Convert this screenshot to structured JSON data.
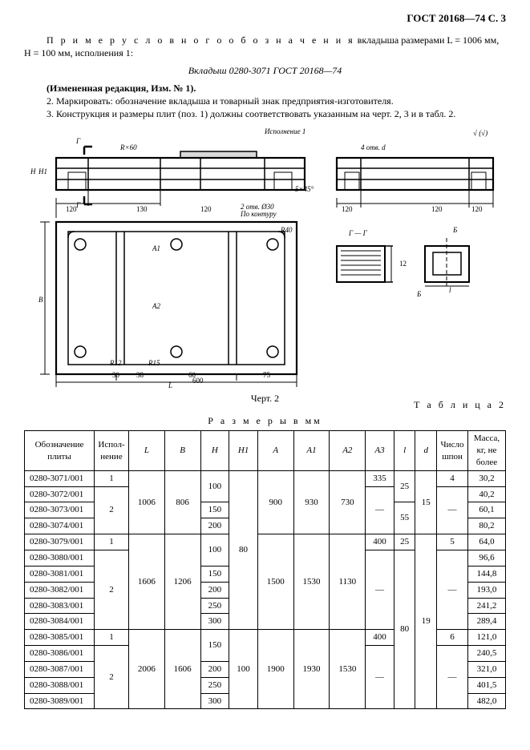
{
  "header": "ГОСТ 20168—74 С. 3",
  "intro": {
    "line1_prefix": "П р и м е р   у с л о в н о г о   о б о з н а ч е н и я",
    "line1_rest": " вкладыша размерами L = 1006 мм, H = 100 мм, исполнения 1:",
    "designation": "Вкладыш 0280-3071 ГОСТ 20168—74",
    "amend": "(Измененная редакция, Изм. № 1).",
    "n2": "2.  Маркировать: обозначение вкладыша и товарный знак предприятия-изготовителя.",
    "n3": "3.  Конструкция и размеры плит (поз. 1) должны соответствовать указанным на черт. 2, 3 и в табл. 2."
  },
  "fig": {
    "caption": "Черт. 2",
    "labels": {
      "isp": "Исполнение 1",
      "vvb": "√ (√)",
      "gg": "Г — Г",
      "g": "Г",
      "gt": "Г",
      "b": "Б",
      "bt": "Б",
      "4d": "4 отв. d",
      "l": "L",
      "h": "H",
      "h1": "H1",
      "b_dim": "B",
      "l1": "l",
      "a": "A",
      "a1": "A1",
      "a2": "A2",
      "a3": "A3",
      "rx": "R×60",
      "r40": "R40",
      "r12": "R12",
      "r15": "R15",
      "d30": "2 отв. Ø30",
      "pok": "По контуру",
      "s": "5×45°",
      "d130": "130",
      "d120_1": "120",
      "d120_2": "120",
      "d120_3": "120",
      "d120_4": "120",
      "d120_5": "120",
      "d30s": "30",
      "d38": "38",
      "d60": "60",
      "d75": "75",
      "d600": "600",
      "d12": "12"
    }
  },
  "table": {
    "num": "Т а б л и ц а  2",
    "title": "Р а з м е р ы   в  мм",
    "cols": [
      "Обозначение плиты",
      "Испол-\nнение",
      "L",
      "B",
      "H",
      "H1",
      "A",
      "A1",
      "A2",
      "A3",
      "l",
      "d",
      "Число\nшпон",
      "Масса,\nкг, не\nболее"
    ],
    "rows": [
      {
        "des": "0280-3071/001",
        "isp": "1",
        "L": "1006",
        "B": "806",
        "H": "100",
        "H1": "80",
        "A": "900",
        "A1": "930",
        "A2": "730",
        "A3": "335",
        "l": "25",
        "d": "15",
        "shpon": "4",
        "mass": "30,2"
      },
      {
        "des": "0280-3072/001",
        "isp": "2",
        "L": "",
        "B": "",
        "H": "",
        "H1": "",
        "A": "",
        "A1": "",
        "A2": "",
        "A3": "—",
        "l": "",
        "d": "",
        "shpon": "—",
        "mass": "40,2"
      },
      {
        "des": "0280-3073/001",
        "isp": "",
        "L": "",
        "B": "",
        "H": "150",
        "H1": "",
        "A": "",
        "A1": "",
        "A2": "",
        "A3": "",
        "l": "55",
        "d": "",
        "shpon": "",
        "mass": "60,1"
      },
      {
        "des": "0280-3074/001",
        "isp": "",
        "L": "",
        "B": "",
        "H": "200",
        "H1": "",
        "A": "",
        "A1": "",
        "A2": "",
        "A3": "",
        "l": "",
        "d": "",
        "shpon": "",
        "mass": "80,2"
      },
      {
        "des": "0280-3079/001",
        "isp": "1",
        "L": "1606",
        "B": "1206",
        "H": "100",
        "H1": "",
        "A": "1500",
        "A1": "1530",
        "A2": "1130",
        "A3": "400",
        "l": "25",
        "d": "19",
        "shpon": "5",
        "mass": "64,0"
      },
      {
        "des": "0280-3080/001",
        "isp": "2",
        "L": "",
        "B": "",
        "H": "",
        "H1": "",
        "A": "",
        "A1": "",
        "A2": "",
        "A3": "—",
        "l": "80",
        "d": "",
        "shpon": "—",
        "mass": "96,6"
      },
      {
        "des": "0280-3081/001",
        "isp": "",
        "L": "",
        "B": "",
        "H": "150",
        "H1": "",
        "A": "",
        "A1": "",
        "A2": "",
        "A3": "",
        "l": "",
        "d": "",
        "shpon": "",
        "mass": "144,8"
      },
      {
        "des": "0280-3082/001",
        "isp": "",
        "L": "",
        "B": "",
        "H": "200",
        "H1": "",
        "A": "",
        "A1": "",
        "A2": "",
        "A3": "",
        "l": "",
        "d": "",
        "shpon": "",
        "mass": "193,0"
      },
      {
        "des": "0280-3083/001",
        "isp": "",
        "L": "",
        "B": "",
        "H": "250",
        "H1": "",
        "A": "",
        "A1": "",
        "A2": "",
        "A3": "",
        "l": "",
        "d": "",
        "shpon": "",
        "mass": "241,2"
      },
      {
        "des": "0280-3084/001",
        "isp": "",
        "L": "",
        "B": "",
        "H": "300",
        "H1": "",
        "A": "",
        "A1": "",
        "A2": "",
        "A3": "",
        "l": "",
        "d": "",
        "shpon": "",
        "mass": "289,4"
      },
      {
        "des": "0280-3085/001",
        "isp": "1",
        "L": "2006",
        "B": "1606",
        "H": "150",
        "H1": "100",
        "A": "1900",
        "A1": "1930",
        "A2": "1530",
        "A3": "400",
        "l": "",
        "d": "",
        "shpon": "6",
        "mass": "121,0"
      },
      {
        "des": "0280-3086/001",
        "isp": "2",
        "L": "",
        "B": "",
        "H": "",
        "H1": "",
        "A": "",
        "A1": "",
        "A2": "",
        "A3": "—",
        "l": "",
        "d": "",
        "shpon": "—",
        "mass": "240,5"
      },
      {
        "des": "0280-3087/001",
        "isp": "",
        "L": "",
        "B": "",
        "H": "200",
        "H1": "",
        "A": "",
        "A1": "",
        "A2": "",
        "A3": "",
        "l": "",
        "d": "",
        "shpon": "",
        "mass": "321,0"
      },
      {
        "des": "0280-3088/001",
        "isp": "",
        "L": "",
        "B": "",
        "H": "250",
        "H1": "",
        "A": "",
        "A1": "",
        "A2": "",
        "A3": "",
        "l": "",
        "d": "",
        "shpon": "",
        "mass": "401,5"
      },
      {
        "des": "0280-3089/001",
        "isp": "",
        "L": "",
        "B": "",
        "H": "300",
        "H1": "",
        "A": "",
        "A1": "",
        "A2": "",
        "A3": "",
        "l": "",
        "d": "",
        "shpon": "",
        "mass": "482,0"
      }
    ]
  },
  "style": {
    "svg": {
      "stroke": "#000",
      "fill": "none",
      "sw": 1.4,
      "sw2": 2.2,
      "font": "9px Times New Roman",
      "fontI": "italic 9px Times New Roman"
    }
  }
}
